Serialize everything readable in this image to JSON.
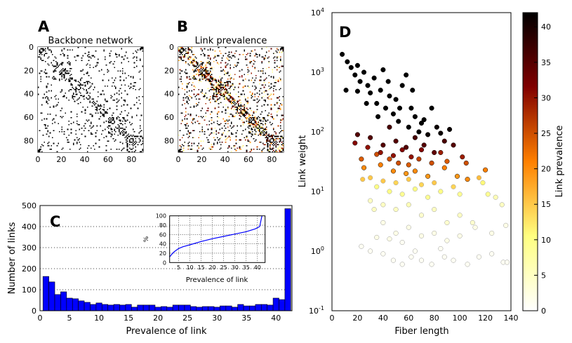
{
  "panels": {
    "A": {
      "letter": "A",
      "title": "Backbone network",
      "ticks": [
        "0",
        "20",
        "40",
        "60",
        "80"
      ]
    },
    "B": {
      "letter": "B",
      "title": "Link prevalence",
      "ticks": [
        "0",
        "20",
        "40",
        "60",
        "80"
      ]
    },
    "C": {
      "letter": "C"
    },
    "D": {
      "letter": "D"
    }
  },
  "chart_data": [
    {
      "type": "heatmap",
      "panel": "A",
      "title": "Backbone network",
      "colors": [
        "#ffffff",
        "#000000"
      ],
      "xlim": [
        0,
        90
      ],
      "ylim": [
        90,
        0
      ],
      "xticks": [
        0,
        20,
        40,
        60,
        80
      ],
      "yticks": [
        0,
        20,
        40,
        60,
        80
      ]
    },
    {
      "type": "heatmap",
      "panel": "B",
      "title": "Link prevalence",
      "colormap": "afmhot_r",
      "xlim": [
        0,
        90
      ],
      "ylim": [
        90,
        0
      ],
      "xticks": [
        0,
        20,
        40,
        60,
        80
      ],
      "yticks": [
        0,
        20,
        40,
        60,
        80
      ]
    },
    {
      "type": "bar",
      "panel": "C",
      "xlabel": "Prevalence of link",
      "ylabel": "Number of links",
      "xlim": [
        0,
        42.7
      ],
      "ylim": [
        0,
        500
      ],
      "xticks": [
        0,
        5,
        10,
        15,
        20,
        25,
        30,
        35,
        40
      ],
      "yticks": [
        0,
        100,
        200,
        300,
        400,
        500
      ],
      "grid": "horizontal dotted",
      "bar_color": "#0000ff",
      "categories": [
        1,
        2,
        3,
        4,
        5,
        6,
        7,
        8,
        9,
        10,
        11,
        12,
        13,
        14,
        15,
        16,
        17,
        18,
        19,
        20,
        21,
        22,
        23,
        24,
        25,
        26,
        27,
        28,
        29,
        30,
        31,
        32,
        33,
        34,
        35,
        36,
        37,
        38,
        39,
        40,
        41,
        42
      ],
      "values": [
        163,
        137,
        77,
        90,
        60,
        57,
        47,
        40,
        30,
        37,
        30,
        27,
        30,
        27,
        30,
        17,
        27,
        27,
        27,
        17,
        20,
        17,
        27,
        27,
        27,
        20,
        17,
        20,
        20,
        17,
        23,
        23,
        17,
        30,
        23,
        23,
        30,
        30,
        27,
        60,
        53,
        485
      ],
      "inset": {
        "type": "line",
        "xlabel": "Prevalence of link",
        "ylabel": "%",
        "xlim": [
          1,
          43.4
        ],
        "ylim": [
          0,
          100
        ],
        "xticks": [
          5,
          10,
          15,
          20,
          25,
          30,
          35,
          40
        ],
        "yticks": [
          0,
          20,
          40,
          60,
          80,
          100
        ],
        "grid": "dotted",
        "line_color": "#0000ff",
        "x": [
          1,
          2,
          3,
          5,
          7,
          10,
          15,
          20,
          25,
          30,
          35,
          39,
          41,
          42
        ],
        "y": [
          12,
          18,
          23,
          30,
          34,
          38,
          45,
          51,
          56,
          61,
          66,
          72,
          77,
          100
        ]
      }
    },
    {
      "type": "scatter",
      "panel": "D",
      "xlabel": "Fiber length",
      "ylabel": "Link weight",
      "xlim": [
        0,
        140
      ],
      "ylim": [
        0.1,
        10000
      ],
      "yscale": "log",
      "xticks": [
        0,
        20,
        40,
        60,
        80,
        100,
        120,
        140
      ],
      "yticks": [
        {
          "base": "10",
          "exp": "-1"
        },
        {
          "base": "10",
          "exp": "0"
        },
        {
          "base": "10",
          "exp": "1"
        },
        {
          "base": "10",
          "exp": "2"
        },
        {
          "base": "10",
          "exp": "3"
        },
        {
          "base": "10",
          "exp": "4"
        }
      ],
      "colorbar": {
        "label": "Link prevalence",
        "colormap": "afmhot_r",
        "range": [
          0,
          42
        ],
        "ticks": [
          0,
          5,
          10,
          15,
          20,
          25,
          30,
          35,
          40
        ]
      },
      "points_fields": [
        "fiber_length",
        "link_weight",
        "link_prevalence"
      ],
      "points": [
        [
          8,
          2000,
          42
        ],
        [
          12,
          1500,
          42
        ],
        [
          15,
          1200,
          42
        ],
        [
          18,
          900,
          42
        ],
        [
          20,
          1300,
          42
        ],
        [
          22,
          700,
          42
        ],
        [
          25,
          1000,
          42
        ],
        [
          28,
          600,
          42
        ],
        [
          30,
          450,
          42
        ],
        [
          33,
          800,
          42
        ],
        [
          35,
          300,
          42
        ],
        [
          38,
          500,
          42
        ],
        [
          40,
          1100,
          42
        ],
        [
          42,
          250,
          42
        ],
        [
          45,
          400,
          42
        ],
        [
          48,
          200,
          42
        ],
        [
          50,
          350,
          42
        ],
        [
          52,
          150,
          42
        ],
        [
          55,
          600,
          42
        ],
        [
          58,
          900,
          42
        ],
        [
          60,
          120,
          42
        ],
        [
          62,
          250,
          42
        ],
        [
          65,
          180,
          42
        ],
        [
          68,
          100,
          42
        ],
        [
          70,
          140,
          42
        ],
        [
          75,
          90,
          41
        ],
        [
          78,
          250,
          42
        ],
        [
          85,
          95,
          41
        ],
        [
          92,
          110,
          41
        ],
        [
          11,
          500,
          42
        ],
        [
          20,
          480,
          42
        ],
        [
          27,
          300,
          42
        ],
        [
          36,
          180,
          42
        ],
        [
          44,
          700,
          42
        ],
        [
          53,
          250,
          42
        ],
        [
          63,
          500,
          42
        ],
        [
          72,
          160,
          42
        ],
        [
          82,
          120,
          41
        ],
        [
          20,
          90,
          35
        ],
        [
          30,
          80,
          35
        ],
        [
          40,
          60,
          35
        ],
        [
          45,
          120,
          36
        ],
        [
          50,
          70,
          35
        ],
        [
          58,
          55,
          35
        ],
        [
          65,
          80,
          36
        ],
        [
          72,
          60,
          35
        ],
        [
          80,
          45,
          34
        ],
        [
          88,
          70,
          36
        ],
        [
          95,
          60,
          35
        ],
        [
          18,
          65,
          31
        ],
        [
          28,
          55,
          30
        ],
        [
          38,
          45,
          30
        ],
        [
          48,
          40,
          30
        ],
        [
          55,
          50,
          31
        ],
        [
          62,
          38,
          30
        ],
        [
          70,
          50,
          31
        ],
        [
          85,
          45,
          29
        ],
        [
          102,
          38,
          29
        ],
        [
          35,
          42,
          25
        ],
        [
          45,
          35,
          25
        ],
        [
          52,
          30,
          25
        ],
        [
          60,
          28,
          24
        ],
        [
          68,
          35,
          26
        ],
        [
          78,
          30,
          25
        ],
        [
          90,
          32,
          24
        ],
        [
          105,
          30,
          25
        ],
        [
          23,
          35,
          24
        ],
        [
          25,
          25,
          20
        ],
        [
          38,
          28,
          21
        ],
        [
          48,
          22,
          20
        ],
        [
          58,
          20,
          19
        ],
        [
          65,
          22,
          20
        ],
        [
          75,
          18,
          19
        ],
        [
          88,
          25,
          21
        ],
        [
          98,
          18,
          19
        ],
        [
          120,
          23,
          21
        ],
        [
          106,
          16,
          20
        ],
        [
          30,
          17,
          15
        ],
        [
          40,
          15,
          15
        ],
        [
          50,
          14,
          14
        ],
        [
          60,
          16,
          15
        ],
        [
          70,
          13,
          14
        ],
        [
          80,
          14,
          15
        ],
        [
          95,
          12,
          14
        ],
        [
          115,
          17,
          16
        ],
        [
          24,
          16,
          15
        ],
        [
          35,
          12,
          10
        ],
        [
          45,
          10,
          10
        ],
        [
          55,
          9,
          9
        ],
        [
          65,
          11,
          10
        ],
        [
          75,
          8,
          9
        ],
        [
          85,
          10,
          10
        ],
        [
          100,
          9,
          9
        ],
        [
          118,
          14,
          11
        ],
        [
          122,
          9,
          9
        ],
        [
          30,
          7,
          5
        ],
        [
          40,
          6,
          5
        ],
        [
          50,
          5,
          5
        ],
        [
          60,
          6,
          6
        ],
        [
          70,
          4,
          4
        ],
        [
          80,
          5,
          5
        ],
        [
          90,
          3,
          4
        ],
        [
          100,
          4,
          5
        ],
        [
          110,
          3,
          4
        ],
        [
          128,
          8,
          6
        ],
        [
          133,
          6,
          5
        ],
        [
          33,
          5,
          5
        ],
        [
          40,
          3,
          2
        ],
        [
          50,
          2,
          2
        ],
        [
          60,
          2.5,
          2
        ],
        [
          70,
          1.8,
          2
        ],
        [
          80,
          2,
          2
        ],
        [
          90,
          1.5,
          2
        ],
        [
          100,
          1.8,
          2
        ],
        [
          112,
          2.5,
          2
        ],
        [
          125,
          2,
          2
        ],
        [
          136,
          2.7,
          2
        ],
        [
          45,
          1.6,
          2
        ],
        [
          55,
          1.4,
          1
        ],
        [
          35,
          1.7,
          2
        ],
        [
          23,
          1.2,
          1
        ],
        [
          30,
          1,
          1
        ],
        [
          40,
          0.9,
          1
        ],
        [
          48,
          0.7,
          1
        ],
        [
          55,
          0.6,
          1
        ],
        [
          62,
          0.8,
          1
        ],
        [
          70,
          0.7,
          1
        ],
        [
          78,
          0.6,
          1
        ],
        [
          88,
          0.8,
          1
        ],
        [
          95,
          0.7,
          1
        ],
        [
          106,
          0.6,
          1
        ],
        [
          115,
          0.8,
          1
        ],
        [
          125,
          0.9,
          1
        ],
        [
          134,
          0.65,
          1
        ],
        [
          137,
          0.65,
          1
        ],
        [
          65,
          1,
          1
        ],
        [
          85,
          1.1,
          1
        ]
      ]
    }
  ]
}
